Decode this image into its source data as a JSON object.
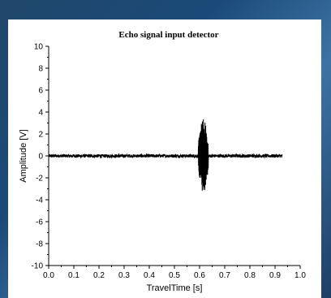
{
  "chart_data": {
    "type": "line",
    "title": "Echo signal input detector",
    "xlabel": "TravelTime [s]",
    "ylabel": "Amplitude [V]",
    "xlim": [
      0.0,
      1.0
    ],
    "ylim": [
      -10,
      10
    ],
    "xticks": [
      "0.0",
      "0.1",
      "0.2",
      "0.3",
      "0.4",
      "0.5",
      "0.6",
      "0.7",
      "0.8",
      "0.9",
      "1.0"
    ],
    "yticks": [
      "10",
      "8",
      "6",
      "4",
      "2",
      "0",
      "-2",
      "-4",
      "-6",
      "-8",
      "-10"
    ],
    "grid": false,
    "legend": "none",
    "series": [
      {
        "noise_amplitude": 0.15,
        "x_range": [
          0.0,
          0.93
        ],
        "echo_burst": {
          "x_start": 0.595,
          "x_end": 0.635,
          "y_min": -3.4,
          "y_max": 3.4
        },
        "color": "#000000"
      }
    ]
  }
}
